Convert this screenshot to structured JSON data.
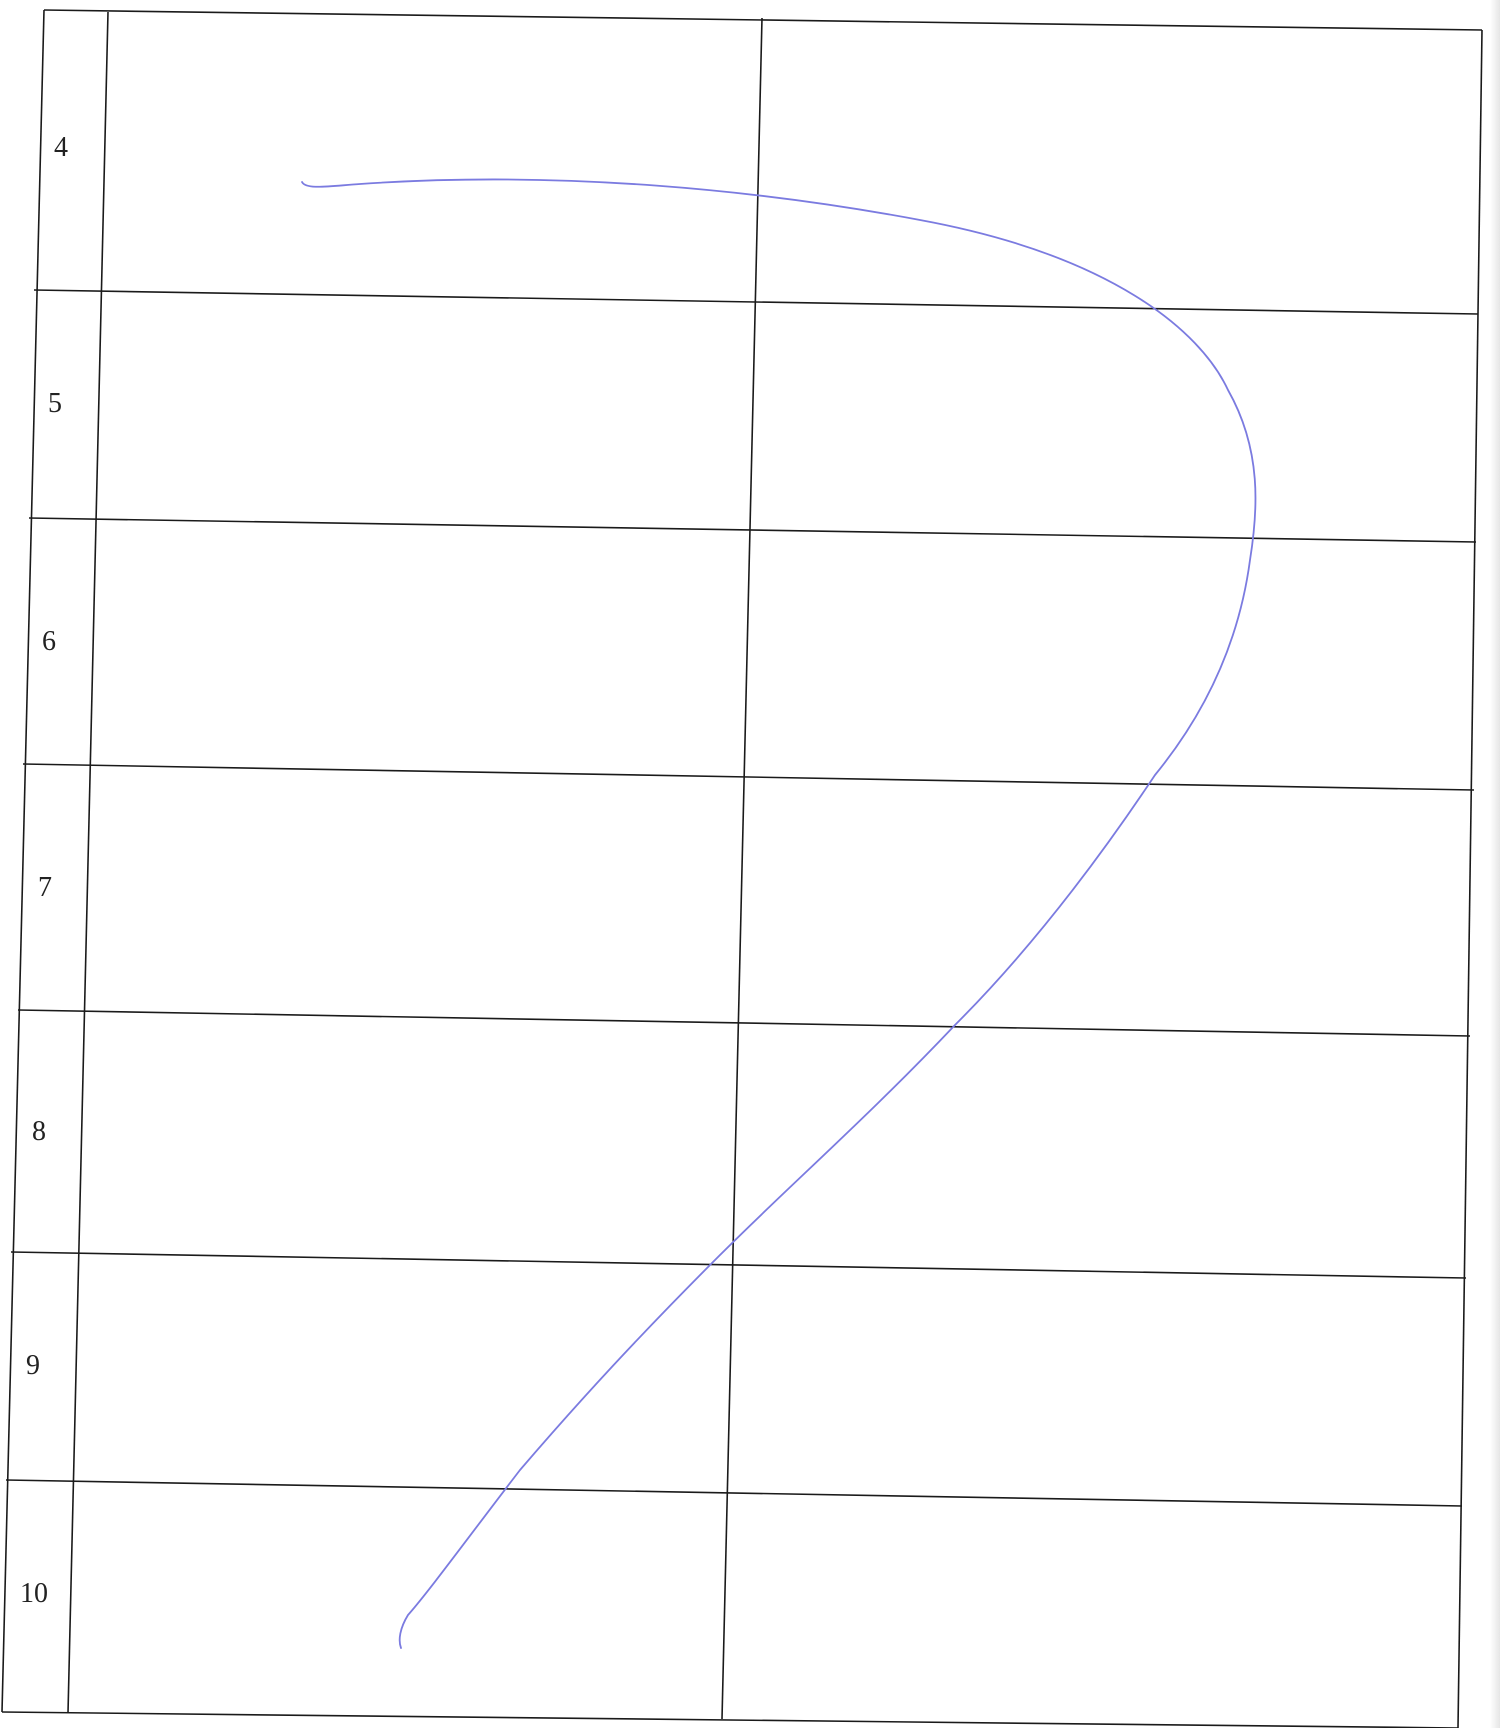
{
  "document": {
    "row_labels": [
      "4",
      "5",
      "6",
      "7",
      "8",
      "9",
      "10"
    ],
    "grid_color": "#1a1a1a",
    "ink_color": "#7b7be0",
    "paper_color": "#ffffff"
  }
}
